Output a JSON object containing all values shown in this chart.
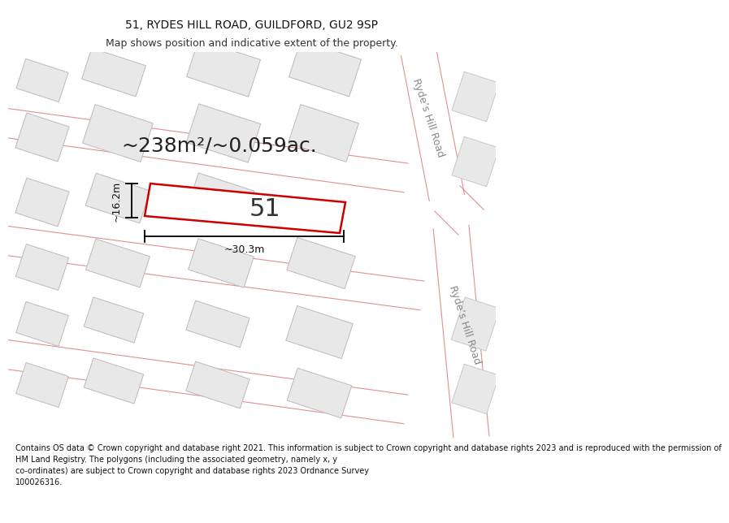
{
  "title": "51, RYDES HILL ROAD, GUILDFORD, GU2 9SP",
  "subtitle": "Map shows position and indicative extent of the property.",
  "footer": "Contains OS data © Crown copyright and database right 2021. This information is subject to Crown copyright and database rights 2023 and is reproduced with the permission of\nHM Land Registry. The polygons (including the associated geometry, namely x, y\nco-ordinates) are subject to Crown copyright and database rights 2023 Ordnance Survey\n100026316.",
  "area_text": "~238m²/~0.059ac.",
  "width_text": "~30.3m",
  "height_text": "~16.2m",
  "number_text": "51",
  "road_label": "Ryde’s Hill Road",
  "road_color": "#e8a0a0",
  "building_fill": "#e8e8e8",
  "building_edge": "#c8c8c8",
  "map_bg": "#f4f4f4",
  "property_edge": "#cc0000",
  "title_fontsize": 10,
  "subtitle_fontsize": 9,
  "area_fontsize": 18,
  "number_fontsize": 22,
  "dim_fontsize": 9,
  "road_label_fontsize": 9,
  "footer_fontsize": 7
}
